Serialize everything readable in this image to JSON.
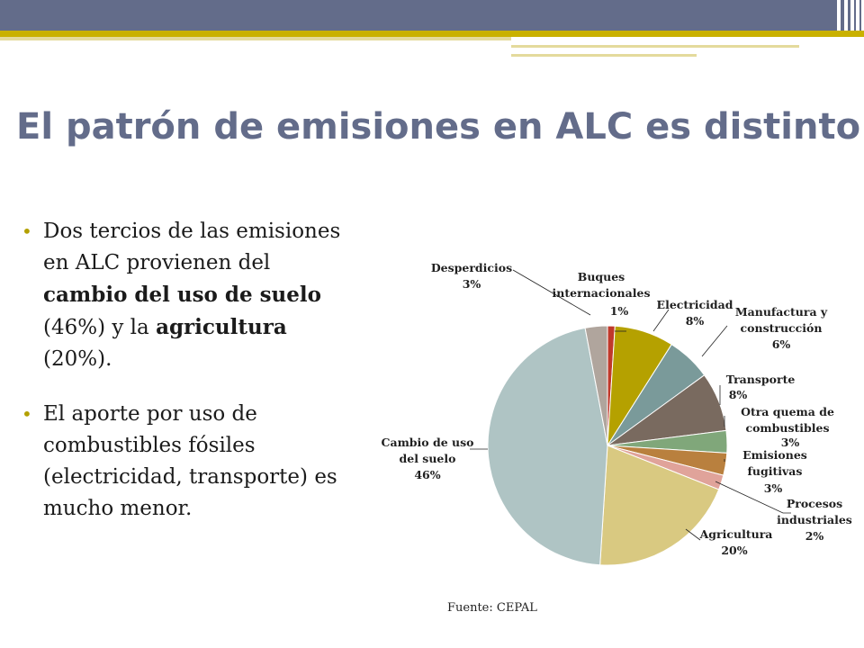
{
  "slide": {
    "title": "El patrón de emisiones en ALC es distinto",
    "bullets": [
      {
        "segments": [
          {
            "text": "Dos tercios de las emisiones en ALC provienen del ",
            "bold": false
          },
          {
            "text": "cambio del uso de suelo",
            "bold": true
          },
          {
            "text": " (46%) y la ",
            "bold": false
          },
          {
            "text": "agricultura",
            "bold": true
          },
          {
            "text": " (20%).",
            "bold": false
          }
        ]
      },
      {
        "segments": [
          {
            "text": "El aporte por uso de combustibles fósiles (electricidad, transporte) es mucho menor.",
            "bold": false
          }
        ]
      }
    ],
    "source": "Fuente: CEPAL",
    "theme_colors": {
      "header": "#636c8a",
      "accent": "#c9b100",
      "accent_light": "#e4da9c"
    }
  },
  "chart_data": {
    "type": "pie",
    "title": "",
    "start": "top, clockwise",
    "slices": [
      {
        "label": "Buques internacionales",
        "value": 1,
        "display": "1%",
        "color": "#c0392b"
      },
      {
        "label": "Electricidad",
        "value": 8,
        "display": "8%",
        "color": "#b5a100"
      },
      {
        "label": "Manufactura y construcción",
        "value": 6,
        "display": "6%",
        "color": "#7a9a9a"
      },
      {
        "label": "Transporte",
        "value": 8,
        "display": "8%",
        "color": "#796a5f"
      },
      {
        "label": "Otra quema de combustibles",
        "value": 3,
        "display": "3%",
        "color": "#80a77a"
      },
      {
        "label": "Emisiones fugitivas",
        "value": 3,
        "display": "3%",
        "color": "#b9803e"
      },
      {
        "label": "Procesos industriales",
        "value": 2,
        "display": "2%",
        "color": "#e0a39a"
      },
      {
        "label": "Agricultura",
        "value": 20,
        "display": "20%",
        "color": "#d9c981"
      },
      {
        "label": "Cambio de uso del suelo",
        "value": 46,
        "display": "46%",
        "color": "#afc4c4"
      },
      {
        "label": "Desperdicios",
        "value": 3,
        "display": "3%",
        "color": "#b0a59d"
      }
    ]
  }
}
